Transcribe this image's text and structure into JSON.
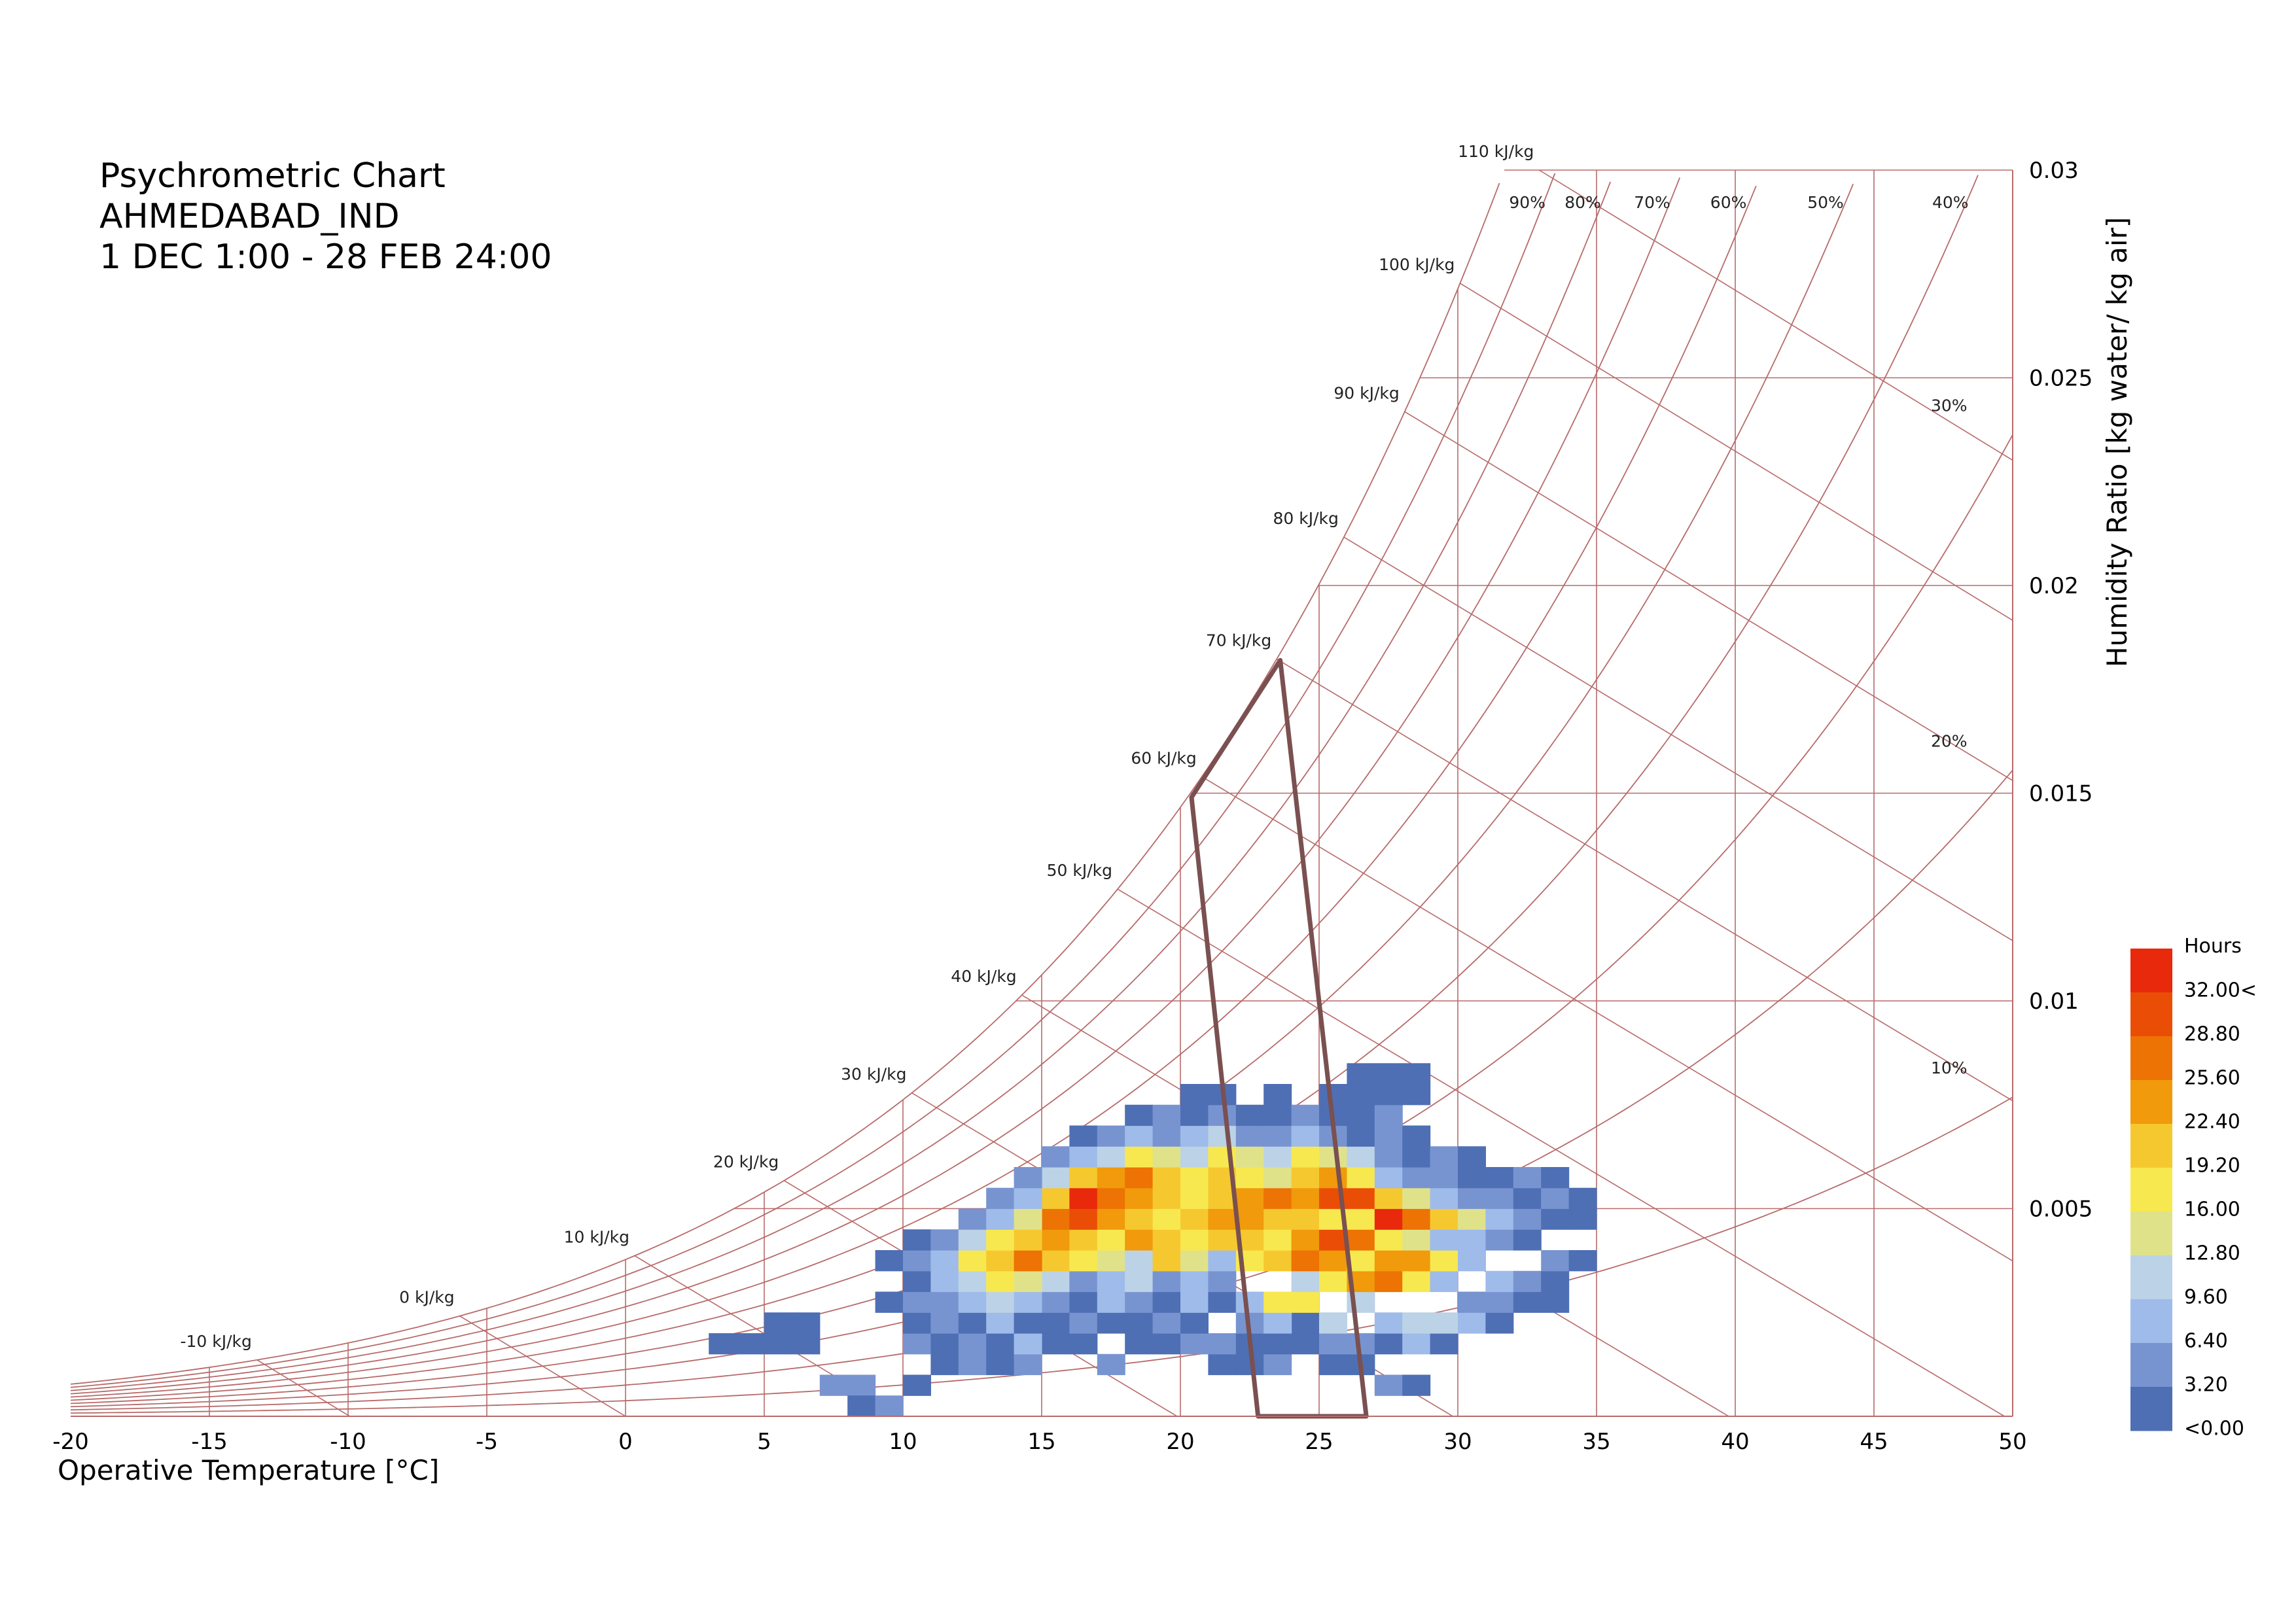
{
  "chart_data": {
    "type": "heatmap",
    "title_lines": [
      "Psychrometric Chart",
      "AHMEDABAD_IND",
      "1 DEC 1:00 - 28 FEB 24:00"
    ],
    "xlabel": "Operative Temperature [°C]",
    "ylabel": "Humidity Ratio [kg water/ kg air]",
    "xlim": [
      -20,
      50
    ],
    "ylim": [
      0,
      0.03
    ],
    "x_ticks": [
      -20,
      -15,
      -10,
      -5,
      0,
      5,
      10,
      15,
      20,
      25,
      30,
      35,
      40,
      45,
      50
    ],
    "x_tick_labels": [
      "-20",
      "-15",
      "-10",
      "-5",
      "0",
      "5",
      "10",
      "15",
      "20",
      "25",
      "30",
      "35",
      "40",
      "45",
      "50"
    ],
    "y_ticks": [
      0.005,
      0.01,
      0.015,
      0.02,
      0.025,
      0.03
    ],
    "y_tick_labels": [
      "0.005",
      "0.01",
      "0.015",
      "0.02",
      "0.025",
      "0.03"
    ],
    "grid": true,
    "enthalpy_lines": [
      {
        "h": -10,
        "label": "-10 kJ/kg"
      },
      {
        "h": 0,
        "label": "0 kJ/kg"
      },
      {
        "h": 10,
        "label": "10 kJ/kg"
      },
      {
        "h": 20,
        "label": "20 kJ/kg"
      },
      {
        "h": 30,
        "label": "30 kJ/kg"
      },
      {
        "h": 40,
        "label": "40 kJ/kg"
      },
      {
        "h": 50,
        "label": "50 kJ/kg"
      },
      {
        "h": 60,
        "label": "60 kJ/kg"
      },
      {
        "h": 70,
        "label": "70 kJ/kg"
      },
      {
        "h": 80,
        "label": "80 kJ/kg"
      },
      {
        "h": 90,
        "label": "90 kJ/kg"
      },
      {
        "h": 100,
        "label": "100 kJ/kg"
      },
      {
        "h": 110,
        "label": "110 kJ/kg"
      }
    ],
    "rh_curves": [
      {
        "rh": 0.1,
        "label": "10%"
      },
      {
        "rh": 0.2,
        "label": "20%"
      },
      {
        "rh": 0.3,
        "label": "30%"
      },
      {
        "rh": 0.4,
        "label": "40%"
      },
      {
        "rh": 0.5,
        "label": "50%"
      },
      {
        "rh": 0.6,
        "label": "60%"
      },
      {
        "rh": 0.7,
        "label": "70%"
      },
      {
        "rh": 0.8,
        "label": "80%"
      },
      {
        "rh": 0.9,
        "label": "90%"
      },
      {
        "rh": 1.0,
        "label": ""
      }
    ],
    "comfort_polygon": [
      [
        22.8,
        0.0
      ],
      [
        26.7,
        0.0
      ],
      [
        23.6,
        0.0182
      ],
      [
        20.4,
        0.0149
      ]
    ],
    "comfort_polygon_color": "#7a5050",
    "legend": {
      "title": "Hours",
      "placement": "right",
      "labels": [
        "32.00<",
        "28.80",
        "25.60",
        "22.40",
        "19.20",
        "16.00",
        "12.80",
        "9.60",
        "6.40",
        "3.20",
        "<0.00"
      ],
      "colors": [
        "#e8290b",
        "#ea4e06",
        "#ec7304",
        "#f09a0c",
        "#f6c830",
        "#f8e850",
        "#e0e28a",
        "#bcd2e6",
        "#9fbbea",
        "#7894d0",
        "#4e6fb4"
      ]
    },
    "cell_size": {
      "dt": 1,
      "dw": 0.0005
    },
    "cells": [
      [
        7,
        1,
        1
      ],
      [
        8,
        1,
        1
      ],
      [
        8,
        0,
        0
      ],
      [
        9,
        0,
        1
      ],
      [
        10,
        1,
        0
      ],
      [
        11,
        2,
        0
      ],
      [
        12,
        2,
        1
      ],
      [
        13,
        2,
        0
      ],
      [
        14,
        2,
        1
      ],
      [
        15,
        3,
        0
      ],
      [
        16,
        3,
        0
      ],
      [
        17,
        2,
        1
      ],
      [
        18,
        3,
        0
      ],
      [
        19,
        3,
        0
      ],
      [
        20,
        3,
        1
      ],
      [
        21,
        2,
        0
      ],
      [
        22,
        2,
        0
      ],
      [
        23,
        2,
        1
      ],
      [
        24,
        3,
        0
      ],
      [
        25,
        2,
        0
      ],
      [
        26,
        2,
        0
      ],
      [
        27,
        1,
        1
      ],
      [
        28,
        1,
        0
      ],
      [
        3,
        3,
        0
      ],
      [
        4,
        3,
        0
      ],
      [
        5,
        3,
        0
      ],
      [
        6,
        3,
        0
      ],
      [
        10,
        3,
        1
      ],
      [
        11,
        3,
        0
      ],
      [
        12,
        3,
        1
      ],
      [
        13,
        3,
        0
      ],
      [
        14,
        3,
        2
      ],
      [
        15,
        4,
        0
      ],
      [
        16,
        4,
        1
      ],
      [
        17,
        4,
        0
      ],
      [
        18,
        4,
        0
      ],
      [
        19,
        4,
        1
      ],
      [
        20,
        4,
        0
      ],
      [
        21,
        3,
        1
      ],
      [
        22,
        3,
        0
      ],
      [
        23,
        3,
        0
      ],
      [
        24,
        4,
        0
      ],
      [
        25,
        3,
        1
      ],
      [
        26,
        3,
        1
      ],
      [
        27,
        3,
        0
      ],
      [
        28,
        3,
        2
      ],
      [
        29,
        3,
        0
      ],
      [
        5,
        4,
        0
      ],
      [
        6,
        4,
        0
      ],
      [
        10,
        4,
        0
      ],
      [
        11,
        4,
        1
      ],
      [
        12,
        4,
        0
      ],
      [
        13,
        4,
        2
      ],
      [
        14,
        4,
        0
      ],
      [
        15,
        5,
        1
      ],
      [
        16,
        5,
        0
      ],
      [
        17,
        5,
        2
      ],
      [
        18,
        5,
        1
      ],
      [
        19,
        5,
        0
      ],
      [
        20,
        5,
        2
      ],
      [
        21,
        5,
        0
      ],
      [
        22,
        4,
        1
      ],
      [
        23,
        4,
        2
      ],
      [
        24,
        5,
        5
      ],
      [
        25,
        4,
        3
      ],
      [
        26,
        5,
        3
      ],
      [
        27,
        4,
        2
      ],
      [
        28,
        4,
        3
      ],
      [
        29,
        4,
        3
      ],
      [
        30,
        4,
        2
      ],
      [
        31,
        4,
        0
      ],
      [
        11,
        5,
        1
      ],
      [
        12,
        5,
        2
      ],
      [
        13,
        5,
        3
      ],
      [
        14,
        5,
        2
      ],
      [
        15,
        6,
        3
      ],
      [
        16,
        6,
        1
      ],
      [
        17,
        6,
        2
      ],
      [
        18,
        6,
        3
      ],
      [
        19,
        6,
        1
      ],
      [
        20,
        6,
        2
      ],
      [
        21,
        6,
        1
      ],
      [
        22,
        5,
        2
      ],
      [
        23,
        5,
        5
      ],
      [
        24,
        6,
        3
      ],
      [
        25,
        6,
        5
      ],
      [
        26,
        6,
        7
      ],
      [
        27,
        6,
        8
      ],
      [
        28,
        6,
        5
      ],
      [
        29,
        6,
        2
      ],
      [
        30,
        5,
        1
      ],
      [
        31,
        5,
        1
      ],
      [
        32,
        5,
        0
      ],
      [
        33,
        5,
        0
      ],
      [
        9,
        5,
        0
      ],
      [
        10,
        5,
        1
      ],
      [
        10,
        6,
        0
      ],
      [
        11,
        6,
        2
      ],
      [
        12,
        6,
        3
      ],
      [
        13,
        6,
        5
      ],
      [
        14,
        6,
        4
      ],
      [
        15,
        7,
        6
      ],
      [
        16,
        7,
        5
      ],
      [
        17,
        7,
        4
      ],
      [
        18,
        7,
        3
      ],
      [
        19,
        7,
        6
      ],
      [
        20,
        7,
        4
      ],
      [
        21,
        7,
        2
      ],
      [
        22,
        7,
        5
      ],
      [
        23,
        7,
        6
      ],
      [
        24,
        7,
        8
      ],
      [
        25,
        7,
        7
      ],
      [
        26,
        7,
        5
      ],
      [
        27,
        7,
        7
      ],
      [
        28,
        7,
        7
      ],
      [
        29,
        7,
        5
      ],
      [
        30,
        7,
        2
      ],
      [
        31,
        6,
        2
      ],
      [
        32,
        6,
        1
      ],
      [
        33,
        6,
        0
      ],
      [
        9,
        7,
        0
      ],
      [
        10,
        7,
        1
      ],
      [
        11,
        7,
        2
      ],
      [
        12,
        7,
        5
      ],
      [
        13,
        7,
        6
      ],
      [
        14,
        7,
        8
      ],
      [
        15,
        8,
        7
      ],
      [
        16,
        8,
        6
      ],
      [
        17,
        8,
        5
      ],
      [
        18,
        8,
        7
      ],
      [
        19,
        8,
        6
      ],
      [
        20,
        8,
        5
      ],
      [
        21,
        8,
        6
      ],
      [
        22,
        8,
        6
      ],
      [
        23,
        8,
        5
      ],
      [
        24,
        8,
        7
      ],
      [
        25,
        8,
        9
      ],
      [
        26,
        8,
        8
      ],
      [
        27,
        8,
        5
      ],
      [
        28,
        8,
        4
      ],
      [
        29,
        8,
        2
      ],
      [
        30,
        8,
        2
      ],
      [
        31,
        8,
        1
      ],
      [
        32,
        8,
        0
      ],
      [
        33,
        7,
        1
      ],
      [
        34,
        7,
        0
      ],
      [
        10,
        8,
        0
      ],
      [
        11,
        8,
        1
      ],
      [
        12,
        8,
        3
      ],
      [
        13,
        8,
        5
      ],
      [
        14,
        8,
        6
      ],
      [
        15,
        9,
        8
      ],
      [
        16,
        9,
        9
      ],
      [
        17,
        9,
        7
      ],
      [
        18,
        9,
        6
      ],
      [
        19,
        9,
        5
      ],
      [
        20,
        9,
        6
      ],
      [
        21,
        9,
        7
      ],
      [
        22,
        9,
        7
      ],
      [
        23,
        9,
        6
      ],
      [
        24,
        9,
        6
      ],
      [
        25,
        9,
        5
      ],
      [
        26,
        9,
        5
      ],
      [
        27,
        9,
        10
      ],
      [
        28,
        9,
        8
      ],
      [
        29,
        9,
        6
      ],
      [
        30,
        9,
        4
      ],
      [
        31,
        9,
        2
      ],
      [
        32,
        9,
        1
      ],
      [
        33,
        9,
        0
      ],
      [
        34,
        9,
        0
      ],
      [
        12,
        9,
        1
      ],
      [
        13,
        9,
        2
      ],
      [
        14,
        9,
        4
      ],
      [
        15,
        10,
        6
      ],
      [
        16,
        10,
        10
      ],
      [
        17,
        10,
        8
      ],
      [
        18,
        10,
        7
      ],
      [
        19,
        10,
        6
      ],
      [
        20,
        10,
        5
      ],
      [
        21,
        10,
        6
      ],
      [
        22,
        10,
        7
      ],
      [
        23,
        10,
        8
      ],
      [
        24,
        10,
        7
      ],
      [
        25,
        10,
        9
      ],
      [
        26,
        10,
        9
      ],
      [
        27,
        10,
        6
      ],
      [
        28,
        10,
        4
      ],
      [
        29,
        10,
        2
      ],
      [
        30,
        10,
        1
      ],
      [
        31,
        10,
        1
      ],
      [
        32,
        10,
        0
      ],
      [
        33,
        10,
        1
      ],
      [
        34,
        10,
        0
      ],
      [
        13,
        10,
        1
      ],
      [
        14,
        10,
        2
      ],
      [
        15,
        11,
        3
      ],
      [
        16,
        11,
        6
      ],
      [
        17,
        11,
        7
      ],
      [
        18,
        11,
        8
      ],
      [
        19,
        11,
        6
      ],
      [
        20,
        11,
        5
      ],
      [
        21,
        11,
        6
      ],
      [
        22,
        11,
        5
      ],
      [
        23,
        11,
        4
      ],
      [
        24,
        11,
        6
      ],
      [
        25,
        11,
        7
      ],
      [
        26,
        11,
        5
      ],
      [
        27,
        11,
        2
      ],
      [
        28,
        11,
        1
      ],
      [
        29,
        11,
        1
      ],
      [
        30,
        11,
        0
      ],
      [
        31,
        11,
        0
      ],
      [
        32,
        11,
        1
      ],
      [
        33,
        11,
        0
      ],
      [
        14,
        11,
        1
      ],
      [
        15,
        12,
        1
      ],
      [
        16,
        12,
        2
      ],
      [
        17,
        12,
        3
      ],
      [
        18,
        12,
        5
      ],
      [
        19,
        12,
        4
      ],
      [
        20,
        12,
        3
      ],
      [
        21,
        12,
        5
      ],
      [
        22,
        12,
        4
      ],
      [
        23,
        12,
        3
      ],
      [
        24,
        12,
        5
      ],
      [
        25,
        12,
        4
      ],
      [
        26,
        12,
        3
      ],
      [
        27,
        12,
        1
      ],
      [
        28,
        12,
        0
      ],
      [
        29,
        12,
        1
      ],
      [
        30,
        12,
        0
      ],
      [
        16,
        13,
        0
      ],
      [
        17,
        13,
        1
      ],
      [
        18,
        13,
        2
      ],
      [
        19,
        13,
        1
      ],
      [
        20,
        13,
        2
      ],
      [
        21,
        13,
        3
      ],
      [
        22,
        13,
        1
      ],
      [
        23,
        13,
        1
      ],
      [
        24,
        13,
        2
      ],
      [
        25,
        13,
        1
      ],
      [
        26,
        13,
        0
      ],
      [
        27,
        13,
        1
      ],
      [
        28,
        13,
        0
      ],
      [
        18,
        14,
        0
      ],
      [
        19,
        14,
        1
      ],
      [
        20,
        14,
        0
      ],
      [
        21,
        14,
        1
      ],
      [
        22,
        14,
        0
      ],
      [
        23,
        14,
        0
      ],
      [
        24,
        14,
        1
      ],
      [
        25,
        14,
        0
      ],
      [
        26,
        14,
        0
      ],
      [
        27,
        14,
        1
      ],
      [
        20,
        15,
        0
      ],
      [
        21,
        15,
        0
      ],
      [
        23,
        15,
        0
      ],
      [
        25,
        15,
        0
      ],
      [
        26,
        15,
        0
      ],
      [
        27,
        15,
        0
      ],
      [
        28,
        15,
        0
      ],
      [
        26,
        16,
        0
      ],
      [
        27,
        16,
        0
      ],
      [
        28,
        16,
        0
      ]
    ]
  }
}
